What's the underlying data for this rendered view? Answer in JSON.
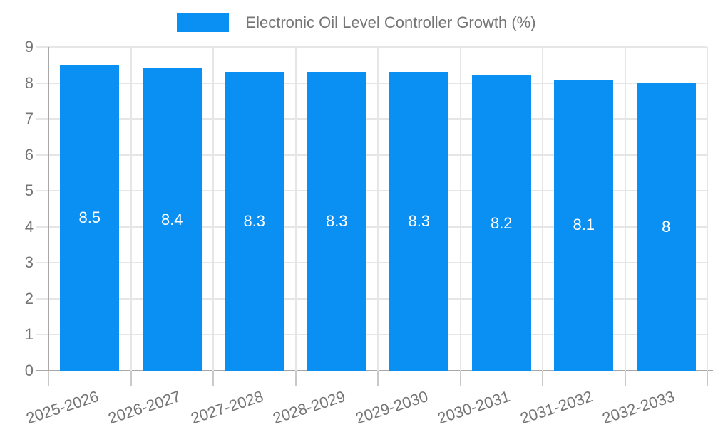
{
  "chart_data": {
    "type": "bar",
    "title": "Electronic Oil Level Controller Growth (%)",
    "legend": {
      "position": "top",
      "label": "Electronic Oil Level Controller Growth (%)"
    },
    "categories": [
      "2025-2026",
      "2026-2027",
      "2027-2028",
      "2028-2029",
      "2029-2030",
      "2030-2031",
      "2031-2032",
      "2032-2033"
    ],
    "series": [
      {
        "name": "Electronic Oil Level Controller Growth (%)",
        "values": [
          8.5,
          8.4,
          8.3,
          8.3,
          8.3,
          8.2,
          8.1,
          8
        ]
      }
    ],
    "value_labels": [
      "8.5",
      "8.4",
      "8.3",
      "8.3",
      "8.3",
      "8.2",
      "8.1",
      "8"
    ],
    "xlabel": "",
    "ylabel": "",
    "ylim": [
      0,
      9
    ],
    "yticks": [
      0,
      1,
      2,
      3,
      4,
      5,
      6,
      7,
      8,
      9
    ],
    "grid": true,
    "colors": {
      "bar": "#0a8ff2",
      "grid": "#e6e6e6",
      "axis": "#a8a8a8",
      "tick": "#c9c9c9",
      "label_text": "#757575",
      "bar_value_text": "#ffffff",
      "background": "#ffffff"
    }
  }
}
